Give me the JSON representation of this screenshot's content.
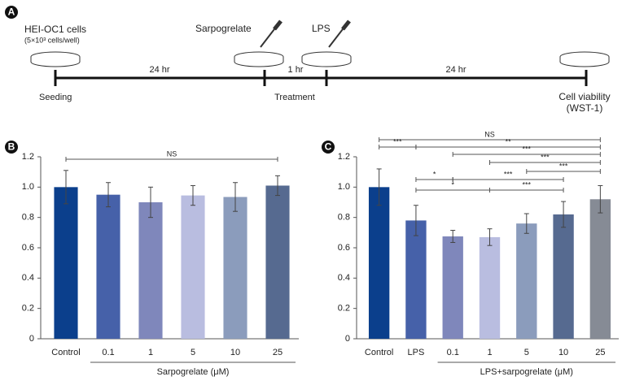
{
  "timeline": {
    "label": "A",
    "cells": "HEI-OC1 cells",
    "density": "(5×10³ cells/well)",
    "drug1": "Sarpogrelate",
    "drug2": "LPS",
    "intervals": [
      "24 hr",
      "1 hr",
      "24 hr"
    ],
    "seeding": "Seeding",
    "treatment": "Treatment",
    "viability": "Cell viability",
    "assay": "(WST-1)"
  },
  "chart_data": [
    {
      "type": "bar",
      "label": "B",
      "categories": [
        "Control",
        "0.1",
        "1",
        "5",
        "10",
        "25"
      ],
      "values": [
        1.0,
        0.95,
        0.9,
        0.945,
        0.935,
        1.01
      ],
      "errors": [
        0.11,
        0.08,
        0.1,
        0.065,
        0.095,
        0.065
      ],
      "colors": [
        "#0b3f8c",
        "#4661a9",
        "#7f87bb",
        "#b9bde0",
        "#8b9cbc",
        "#566a90"
      ],
      "xlabel": "Sarpogrelate (μM)",
      "ylim": [
        0,
        1.2
      ],
      "yticks": [
        0,
        0.2,
        0.4,
        0.6,
        0.8,
        {
          "value": 1,
          "label": "1.0"
        },
        1.2
      ],
      "brackets": [
        {
          "label": "NS",
          "between": [
            0,
            5
          ]
        }
      ]
    },
    {
      "type": "bar",
      "label": "C",
      "categories": [
        "Control",
        "LPS",
        "0.1",
        "1",
        "5",
        "10",
        "25"
      ],
      "values": [
        1.0,
        0.78,
        0.675,
        0.67,
        0.76,
        0.82,
        0.92
      ],
      "errors": [
        0.12,
        0.1,
        0.04,
        0.055,
        0.065,
        0.085,
        0.09
      ],
      "colors": [
        "#0b3f8c",
        "#4661a9",
        "#7f87bb",
        "#b9bde0",
        "#8b9cbc",
        "#566a90",
        "#868b95"
      ],
      "xlabel": "LPS+sarpogrelate (μM)",
      "ylim": [
        0,
        1.2
      ],
      "yticks": [
        0,
        0.2,
        0.4,
        0.6,
        0.8,
        {
          "value": 1,
          "label": "1.0"
        },
        1.2
      ],
      "brackets": [
        {
          "label": "NS",
          "between": [
            0,
            6
          ]
        },
        {
          "label": "***",
          "between": [
            0,
            1
          ]
        },
        {
          "label": "**",
          "between": [
            1,
            6
          ]
        },
        {
          "label": "***",
          "between": [
            2,
            6
          ]
        },
        {
          "label": "***",
          "between": [
            3,
            6
          ]
        },
        {
          "label": "***",
          "between": [
            4,
            6
          ]
        },
        {
          "label": "*",
          "between": [
            1,
            2
          ]
        },
        {
          "label": "***",
          "between": [
            2,
            5
          ]
        },
        {
          "label": "*",
          "between": [
            1,
            3
          ]
        },
        {
          "label": "***",
          "between": [
            3,
            5
          ]
        }
      ]
    }
  ]
}
